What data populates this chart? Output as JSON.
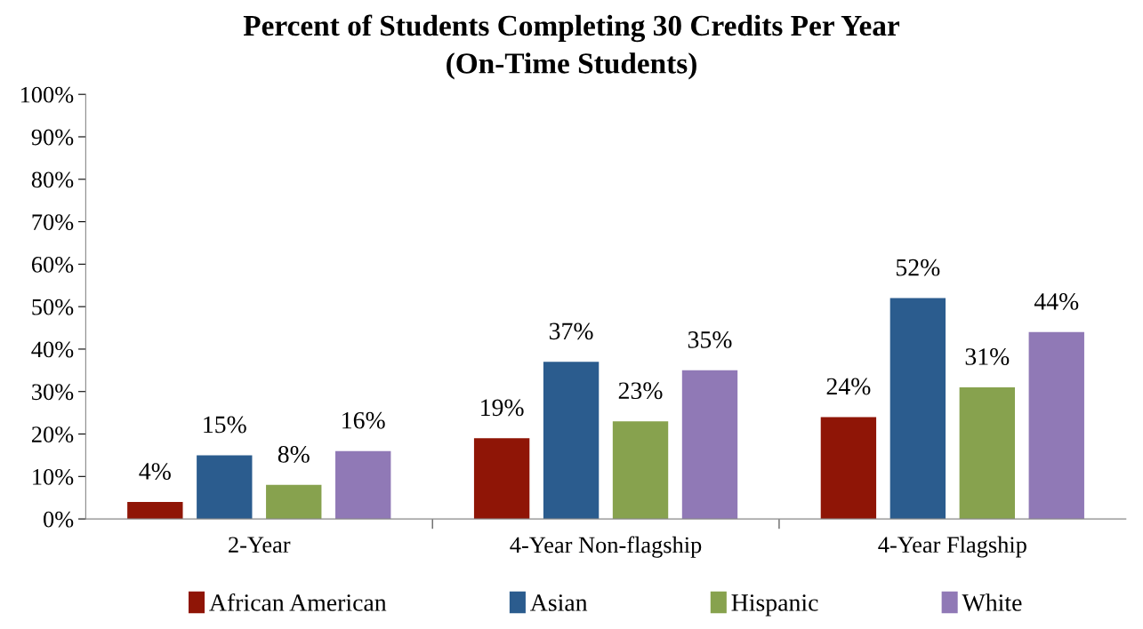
{
  "chart_data": {
    "type": "bar",
    "title": "Percent of Students Completing 30 Credits Per Year",
    "subtitle": "(On-Time Students)",
    "categories": [
      "2-Year",
      "4-Year Non-flagship",
      "4-Year Flagship"
    ],
    "series": [
      {
        "name": "African American",
        "color": "#8f1506",
        "values": [
          4,
          19,
          24
        ],
        "value_labels": [
          "4%",
          "19%",
          "24%"
        ]
      },
      {
        "name": "Asian",
        "color": "#2b5c8e",
        "values": [
          15,
          37,
          52
        ],
        "value_labels": [
          "15%",
          "37%",
          "52%"
        ]
      },
      {
        "name": "Hispanic",
        "color": "#87a24e",
        "values": [
          8,
          23,
          31
        ],
        "value_labels": [
          "8%",
          "23%",
          "31%"
        ]
      },
      {
        "name": "White",
        "color": "#9079b6",
        "values": [
          16,
          35,
          44
        ],
        "value_labels": [
          "16%",
          "35%",
          "44%"
        ]
      }
    ],
    "ylim": [
      0,
      100
    ],
    "yticks": [
      {
        "value": 0,
        "label": "0%"
      },
      {
        "value": 10,
        "label": "10%"
      },
      {
        "value": 20,
        "label": "20%"
      },
      {
        "value": 30,
        "label": "30%"
      },
      {
        "value": 40,
        "label": "40%"
      },
      {
        "value": 50,
        "label": "50%"
      },
      {
        "value": 60,
        "label": "60%"
      },
      {
        "value": 70,
        "label": "70%"
      },
      {
        "value": 80,
        "label": "80%"
      },
      {
        "value": 90,
        "label": "90%"
      },
      {
        "value": 100,
        "label": "100%"
      }
    ],
    "legend": "bottom"
  }
}
